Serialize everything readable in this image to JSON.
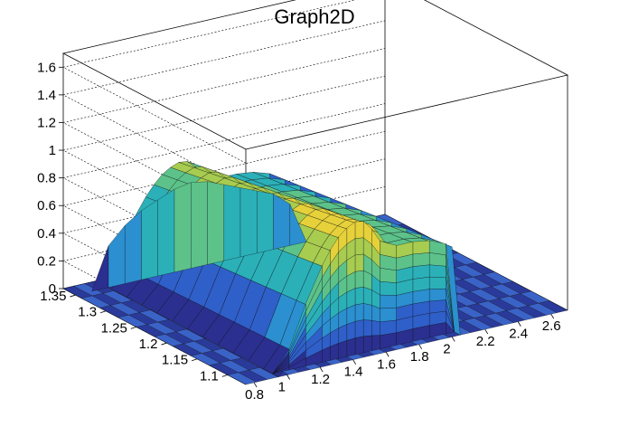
{
  "chart_data": {
    "type": "surface3d",
    "title": "Graph2D",
    "x_axis": {
      "ticks": [
        "0.8",
        "1",
        "1.2",
        "1.4",
        "1.6",
        "1.8",
        "2",
        "2.2",
        "2.4",
        "2.6"
      ],
      "range": [
        0.75,
        2.7
      ]
    },
    "y_axis": {
      "ticks": [
        "1.1",
        "1.15",
        "1.2",
        "1.25",
        "1.3",
        "1.35"
      ],
      "range": [
        1.07,
        1.37
      ]
    },
    "z_axis": {
      "ticks": [
        "0",
        "0.2",
        "0.4",
        "0.6",
        "0.8",
        "1",
        "1.2",
        "1.4",
        "1.6"
      ],
      "range": [
        0,
        1.7
      ]
    },
    "grid": true,
    "colormap": "viridis-like (dark blue → cyan → green → yellow)",
    "profile_x": [
      0.95,
      1.05,
      1.15,
      1.25,
      1.3,
      1.35,
      1.4,
      1.45,
      1.5,
      1.55,
      1.6,
      1.7,
      1.8,
      1.9,
      2.0,
      2.05
    ],
    "profile_z": [
      0.0,
      0.15,
      0.45,
      0.7,
      0.8,
      0.88,
      0.93,
      0.96,
      0.95,
      0.88,
      0.78,
      0.72,
      0.72,
      0.7,
      0.65,
      0.0
    ],
    "back_ridge_z": [
      0.0,
      0.3,
      0.42,
      0.5,
      0.55,
      0.6,
      0.62,
      0.6,
      0.55,
      0.5,
      0.45,
      0.4,
      0.3,
      0.0
    ],
    "floor_colors": [
      "#2a3a9a",
      "#3a63c8"
    ],
    "colors": [
      "#2b2f8f",
      "#2f5fc9",
      "#2b8fd0",
      "#2bb0b8",
      "#5cc28a",
      "#a7cc4f",
      "#e6d13a",
      "#f5e43b"
    ]
  }
}
